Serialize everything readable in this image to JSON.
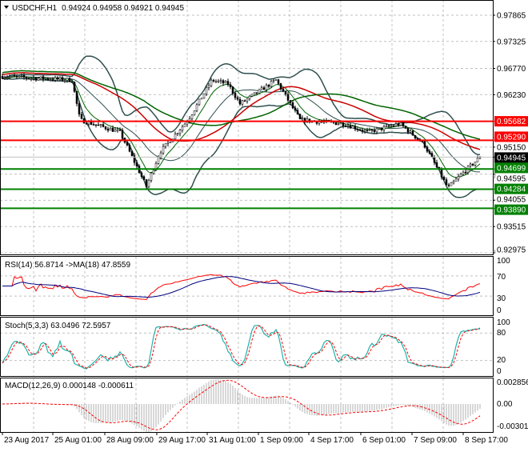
{
  "header": {
    "symbol": "USDCHF,H1",
    "ohlc": "0.94924 0.94958 0.94921 0.94945"
  },
  "price_axis": [
    "0.97865",
    "0.97325",
    "0.96770",
    "0.96230",
    "0.95150",
    "0.94595",
    "0.94055",
    "0.93515",
    "0.92975"
  ],
  "levels": [
    {
      "price": 0.95682,
      "label": "0.95682",
      "color": "#ff0000"
    },
    {
      "price": 0.9529,
      "label": "0.95290",
      "color": "#ff0000"
    },
    {
      "price": 0.94699,
      "label": "0.94699",
      "color": "#008000"
    },
    {
      "price": 0.94284,
      "label": "0.94284",
      "color": "#008000"
    },
    {
      "price": 0.9389,
      "label": "0.93890",
      "color": "#008000"
    }
  ],
  "current_price": {
    "price": 0.94945,
    "label": "0.94945",
    "color": "#000000"
  },
  "rsi": {
    "title": "RSI(14) 56.8714  ->MA(18) 47.8559",
    "axis": [
      "100",
      "70",
      "30",
      "0"
    ]
  },
  "stoch": {
    "title": "Stoch(5,3,3) 63.0496 72.5957",
    "axis": [
      "100",
      "80",
      "20",
      "0"
    ]
  },
  "macd": {
    "title": "MACD(12,26,9) 0.000148 -0.000611",
    "axis": [
      "0.002856",
      "0.00",
      "-0.003017"
    ]
  },
  "time_axis": [
    "23 Aug 2017",
    "25 Aug 01:00",
    "28 Aug 09:00",
    "29 Aug 17:00",
    "31 Aug 01:00",
    "1 Sep 09:00",
    "4 Sep 17:00",
    "6 Sep 01:00",
    "7 Sep 09:00",
    "8 Sep 17:00"
  ],
  "chart_data": {
    "type": "line",
    "title": "USDCHF,H1",
    "price_path": [
      [
        0,
        0.9661
      ],
      [
        90,
        0.9653
      ],
      [
        100,
        0.9571
      ],
      [
        150,
        0.9546
      ],
      [
        183,
        0.9434
      ],
      [
        200,
        0.9505
      ],
      [
        235,
        0.9571
      ],
      [
        265,
        0.9653
      ],
      [
        285,
        0.9645
      ],
      [
        300,
        0.9604
      ],
      [
        345,
        0.9653
      ],
      [
        375,
        0.9571
      ],
      [
        430,
        0.9563
      ],
      [
        460,
        0.9546
      ],
      [
        500,
        0.9563
      ],
      [
        530,
        0.9521
      ],
      [
        560,
        0.9431
      ],
      [
        580,
        0.9464
      ],
      [
        600,
        0.94945
      ]
    ],
    "ylim": [
      0.92975,
      0.97865
    ]
  }
}
